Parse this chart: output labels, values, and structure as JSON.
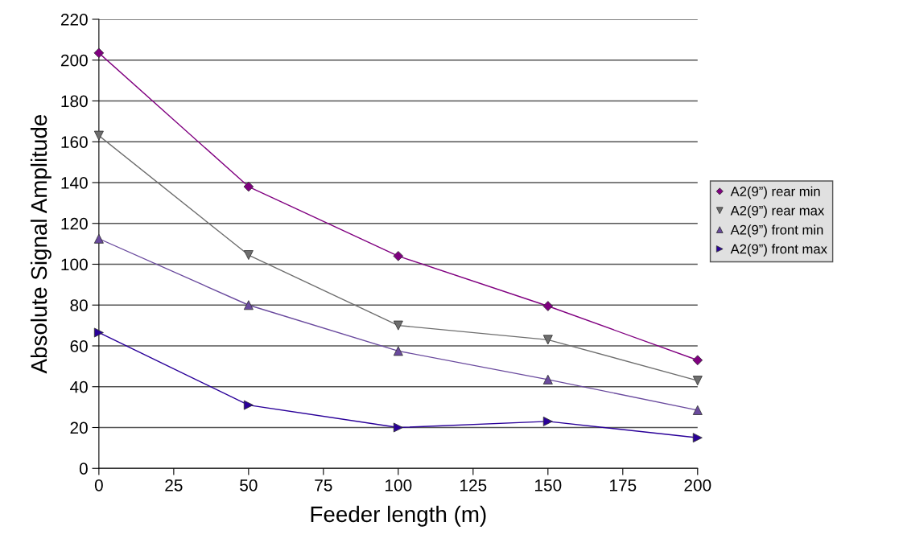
{
  "chart_data": {
    "type": "line",
    "xlabel": "Feeder length (m)",
    "ylabel": "Absolute Signal Amplitude",
    "x": [
      0,
      50,
      100,
      150,
      200
    ],
    "series": [
      {
        "name": "A2(9”) rear min",
        "color": "#800080",
        "marker": "diamond",
        "values": [
          203.5,
          138,
          104,
          79.5,
          53
        ]
      },
      {
        "name": "A2(9”) rear max",
        "color": "#6e6e6e",
        "marker": "triangle_down",
        "values": [
          163,
          104.5,
          70,
          63,
          43
        ]
      },
      {
        "name": "A2(9”) front min",
        "color": "#6a4a9e",
        "marker": "triangle",
        "values": [
          112.5,
          80,
          57.5,
          43.5,
          28.5
        ]
      },
      {
        "name": "A2(9”) front max",
        "color": "#2a0099",
        "marker": "triangle_right",
        "values": [
          66.5,
          31,
          20,
          23,
          15
        ]
      }
    ],
    "xlim": [
      0,
      200
    ],
    "xticks": [
      0,
      25,
      50,
      75,
      100,
      125,
      150,
      175,
      200
    ],
    "ylim": [
      0,
      220
    ],
    "yticks": [
      0,
      20,
      40,
      60,
      80,
      100,
      120,
      140,
      160,
      180,
      200,
      220
    ],
    "grid": "y",
    "legend": "right"
  }
}
